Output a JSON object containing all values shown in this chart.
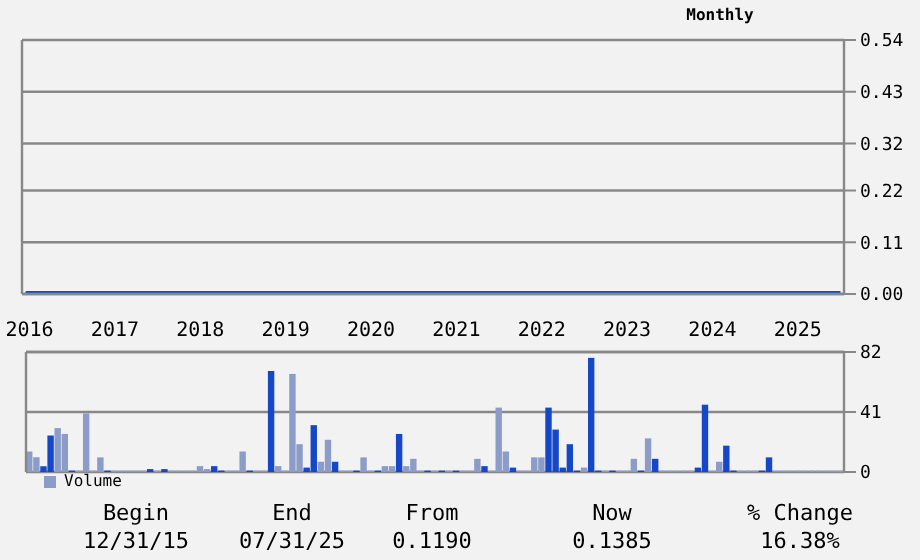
{
  "chart_data": [
    {
      "type": "line",
      "subtitle": "Monthly",
      "x": [
        "2016-01",
        "2025-07"
      ],
      "xlim": [
        "2015-12-16",
        "2025-07-16"
      ],
      "series": [
        {
          "color": "#1448c8",
          "values": [
            0,
            0
          ]
        }
      ],
      "ylim": [
        0,
        0.54
      ],
      "yticks": [
        {
          "value": 0,
          "label": "0.00"
        },
        0.11,
        0.22,
        0.32,
        0.43,
        0.54
      ],
      "grid": "y",
      "tick_labels": "y",
      "marker": "none",
      "line_style": "solid"
    },
    {
      "type": "bar",
      "x": [
        "2016-01",
        "2016-02",
        "2016-03",
        "2016-04",
        "2016-05",
        "2016-06",
        "2016-07",
        "2016-08",
        "2016-09",
        "2016-10",
        "2016-11",
        "2016-12",
        "2017-01",
        "2017-02",
        "2017-03",
        "2017-04",
        "2017-05",
        "2017-06",
        "2017-07",
        "2017-08",
        "2017-09",
        "2017-10",
        "2017-11",
        "2017-12",
        "2018-01",
        "2018-02",
        "2018-03",
        "2018-04",
        "2018-05",
        "2018-06",
        "2018-07",
        "2018-08",
        "2018-09",
        "2018-10",
        "2018-11",
        "2018-12",
        "2019-01",
        "2019-02",
        "2019-03",
        "2019-04",
        "2019-05",
        "2019-06",
        "2019-07",
        "2019-08",
        "2019-09",
        "2019-10",
        "2019-11",
        "2019-12",
        "2020-01",
        "2020-02",
        "2020-03",
        "2020-04",
        "2020-05",
        "2020-06",
        "2020-07",
        "2020-08",
        "2020-09",
        "2020-10",
        "2020-11",
        "2020-12",
        "2021-01",
        "2021-02",
        "2021-03",
        "2021-04",
        "2021-05",
        "2021-06",
        "2021-07",
        "2021-08",
        "2021-09",
        "2021-10",
        "2021-11",
        "2021-12",
        "2022-01",
        "2022-02",
        "2022-03",
        "2022-04",
        "2022-05",
        "2022-06",
        "2022-07",
        "2022-08",
        "2022-09",
        "2022-10",
        "2022-11",
        "2022-12",
        "2023-01",
        "2023-02",
        "2023-03",
        "2023-04",
        "2023-05",
        "2023-06",
        "2023-07",
        "2023-08",
        "2023-09",
        "2023-10",
        "2023-11",
        "2023-12",
        "2024-01",
        "2024-02",
        "2024-03",
        "2024-04",
        "2024-05",
        "2024-06",
        "2024-07",
        "2024-08",
        "2024-09",
        "2024-10",
        "2024-11",
        "2024-12",
        "2025-01",
        "2025-02",
        "2025-03",
        "2025-04",
        "2025-05",
        "2025-06",
        "2025-07"
      ],
      "series": [
        {
          "name": "Volume",
          "color": "#8c9cc8",
          "values": [
            14,
            10,
            4,
            25,
            30,
            26,
            1,
            1,
            40,
            1,
            10,
            1,
            1,
            1,
            1,
            1,
            1,
            2,
            1,
            2,
            1,
            1,
            1,
            1,
            4,
            2,
            4,
            1,
            1,
            1,
            14,
            1,
            1,
            1,
            69,
            4,
            1,
            67,
            19,
            3,
            32,
            7,
            22,
            7,
            1,
            1,
            1,
            10,
            1,
            1,
            4,
            4,
            26,
            4,
            9,
            1,
            1,
            1,
            1,
            1,
            1,
            1,
            1,
            9,
            4,
            1,
            44,
            14,
            3,
            1,
            1,
            10,
            10,
            44,
            29,
            3,
            19,
            1,
            3,
            78,
            1,
            1,
            1,
            1,
            1,
            9,
            1,
            23,
            9,
            1,
            1,
            1,
            1,
            1,
            3,
            46,
            1,
            7,
            18,
            1,
            1,
            1,
            1,
            1,
            10,
            1,
            1,
            1,
            1,
            1,
            1,
            1,
            1,
            1,
            1
          ],
          "colors": [
            "#8c9cc8",
            "#8c9cc8",
            "#1448c8",
            "#1448c8",
            "#8c9cc8",
            "#8c9cc8",
            "#1448c8",
            "#8c9cc8",
            "#8c9cc8",
            "#8c9cc8",
            "#8c9cc8",
            "#1448c8",
            "#8c9cc8",
            "#8c9cc8",
            "#8c9cc8",
            "#8c9cc8",
            "#8c9cc8",
            "#1448c8",
            "#8c9cc8",
            "#1448c8",
            "#8c9cc8",
            "#8c9cc8",
            "#8c9cc8",
            "#8c9cc8",
            "#8c9cc8",
            "#8c9cc8",
            "#1448c8",
            "#1448c8",
            "#8c9cc8",
            "#8c9cc8",
            "#8c9cc8",
            "#1448c8",
            "#8c9cc8",
            "#8c9cc8",
            "#1448c8",
            "#8c9cc8",
            "#8c9cc8",
            "#8c9cc8",
            "#8c9cc8",
            "#1448c8",
            "#1448c8",
            "#8c9cc8",
            "#8c9cc8",
            "#1448c8",
            "#8c9cc8",
            "#8c9cc8",
            "#1448c8",
            "#8c9cc8",
            "#8c9cc8",
            "#1448c8",
            "#8c9cc8",
            "#8c9cc8",
            "#1448c8",
            "#8c9cc8",
            "#8c9cc8",
            "#8c9cc8",
            "#1448c8",
            "#8c9cc8",
            "#1448c8",
            "#8c9cc8",
            "#1448c8",
            "#8c9cc8",
            "#8c9cc8",
            "#8c9cc8",
            "#1448c8",
            "#8c9cc8",
            "#8c9cc8",
            "#8c9cc8",
            "#1448c8",
            "#8c9cc8",
            "#8c9cc8",
            "#8c9cc8",
            "#8c9cc8",
            "#1448c8",
            "#1448c8",
            "#1448c8",
            "#1448c8",
            "#1448c8",
            "#8c9cc8",
            "#1448c8",
            "#1448c8",
            "#8c9cc8",
            "#1448c8",
            "#8c9cc8",
            "#8c9cc8",
            "#8c9cc8",
            "#1448c8",
            "#8c9cc8",
            "#1448c8",
            "#8c9cc8",
            "#8c9cc8",
            "#8c9cc8",
            "#8c9cc8",
            "#8c9cc8",
            "#1448c8",
            "#1448c8",
            "#8c9cc8",
            "#8c9cc8",
            "#1448c8",
            "#1448c8",
            "#8c9cc8",
            "#8c9cc8",
            "#8c9cc8",
            "#1448c8",
            "#1448c8",
            "#8c9cc8",
            "#8c9cc8",
            "#8c9cc8",
            "#8c9cc8",
            "#8c9cc8",
            "#8c9cc8",
            "#8c9cc8",
            "#8c9cc8",
            "#8c9cc8",
            "#8c9cc8"
          ]
        }
      ],
      "xlim": [
        "2015-12-16",
        "2025-07-16"
      ],
      "xticks": [
        "2016",
        "2017",
        "2018",
        "2019",
        "2020",
        "2021",
        "2022",
        "2023",
        "2024",
        "2025"
      ],
      "ylim": [
        0,
        82
      ],
      "yticks": [
        0,
        41,
        82
      ],
      "grid": "y",
      "legend": "bottom left"
    },
    {
      "type": "other",
      "annotations": [
        "Begin",
        "12/31/15",
        "End",
        "07/31/25",
        "From",
        "0.1190",
        "Now",
        "0.1385",
        "% Change",
        "16.38%"
      ]
    }
  ]
}
